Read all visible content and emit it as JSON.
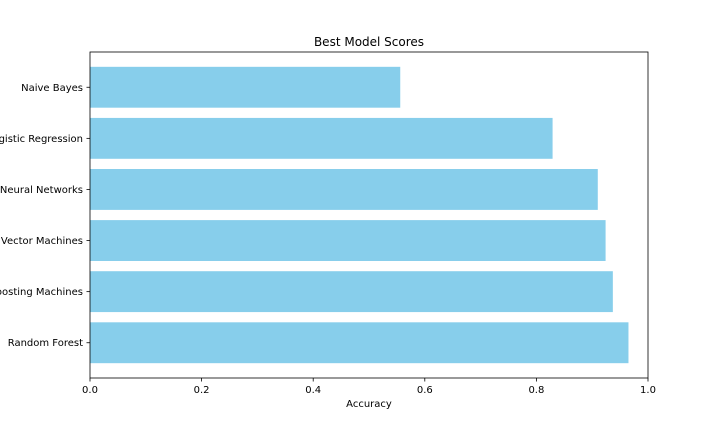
{
  "chart_data": {
    "type": "bar",
    "orientation": "horizontal",
    "title": "Best Model Scores",
    "xlabel": "Accuracy",
    "ylabel": "",
    "xlim": [
      0,
      1
    ],
    "xticks": [
      "0.0",
      "0.2",
      "0.4",
      "0.6",
      "0.8",
      "1.0"
    ],
    "xtick_values": [
      0,
      0.2,
      0.4,
      0.6,
      0.8,
      1.0
    ],
    "categories": [
      "Random Forest",
      "Gradient Boosting Machines",
      "Support Vector Machines",
      "Neural Networks",
      "Logistic Regression",
      "Naive Bayes"
    ],
    "values": [
      0.965,
      0.937,
      0.924,
      0.91,
      0.829,
      0.556
    ],
    "bar_color": "#87ceeb",
    "grid": false,
    "legend": "none"
  }
}
